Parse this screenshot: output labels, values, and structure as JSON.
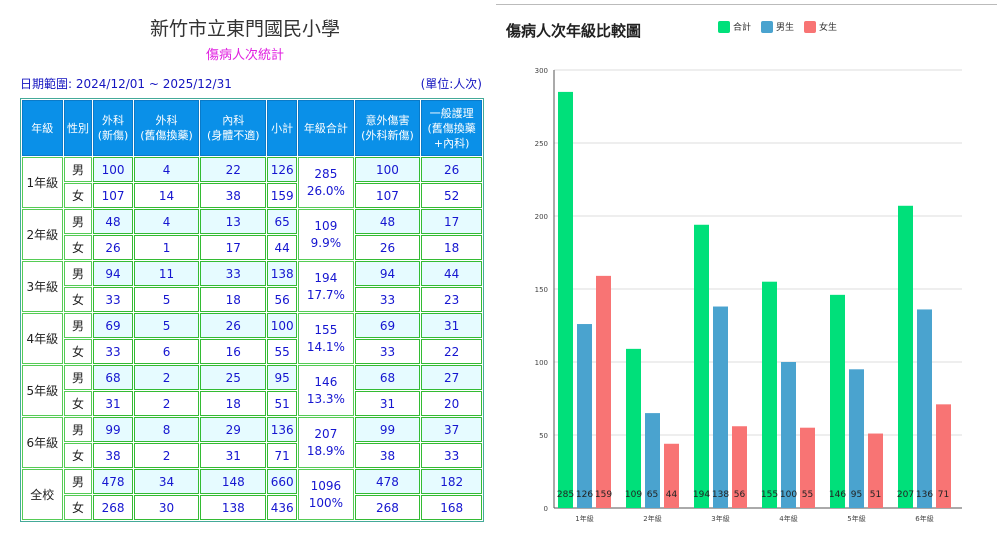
{
  "table": {
    "title": "新竹市立東門國民小學",
    "subtitle": "傷病人次統計",
    "date_range": "日期範圍: 2024/12/01 ~ 2025/12/31",
    "unit": "(單位:人次)",
    "headers": [
      [
        "年級"
      ],
      [
        "性別"
      ],
      [
        "外科",
        "(新傷)"
      ],
      [
        "外科",
        "(舊傷換藥)"
      ],
      [
        "內科",
        "(身體不適)"
      ],
      [
        "小計"
      ],
      [
        "年級合計"
      ],
      [
        "意外傷害",
        "(外科新傷)"
      ],
      [
        "一般護理",
        "(舊傷換藥",
        "+內科)"
      ]
    ],
    "groups": [
      {
        "grade": "1年級",
        "total": "285",
        "pct": "26.0%",
        "rows": [
          {
            "sex": "男",
            "vals": [
              "100",
              "4",
              "22",
              "126"
            ],
            "acc": [
              "100",
              "26"
            ]
          },
          {
            "sex": "女",
            "vals": [
              "107",
              "14",
              "38",
              "159"
            ],
            "acc": [
              "107",
              "52"
            ]
          }
        ]
      },
      {
        "grade": "2年級",
        "total": "109",
        "pct": "9.9%",
        "rows": [
          {
            "sex": "男",
            "vals": [
              "48",
              "4",
              "13",
              "65"
            ],
            "acc": [
              "48",
              "17"
            ]
          },
          {
            "sex": "女",
            "vals": [
              "26",
              "1",
              "17",
              "44"
            ],
            "acc": [
              "26",
              "18"
            ]
          }
        ]
      },
      {
        "grade": "3年級",
        "total": "194",
        "pct": "17.7%",
        "rows": [
          {
            "sex": "男",
            "vals": [
              "94",
              "11",
              "33",
              "138"
            ],
            "acc": [
              "94",
              "44"
            ]
          },
          {
            "sex": "女",
            "vals": [
              "33",
              "5",
              "18",
              "56"
            ],
            "acc": [
              "33",
              "23"
            ]
          }
        ]
      },
      {
        "grade": "4年級",
        "total": "155",
        "pct": "14.1%",
        "rows": [
          {
            "sex": "男",
            "vals": [
              "69",
              "5",
              "26",
              "100"
            ],
            "acc": [
              "69",
              "31"
            ]
          },
          {
            "sex": "女",
            "vals": [
              "33",
              "6",
              "16",
              "55"
            ],
            "acc": [
              "33",
              "22"
            ]
          }
        ]
      },
      {
        "grade": "5年級",
        "total": "146",
        "pct": "13.3%",
        "rows": [
          {
            "sex": "男",
            "vals": [
              "68",
              "2",
              "25",
              "95"
            ],
            "acc": [
              "68",
              "27"
            ]
          },
          {
            "sex": "女",
            "vals": [
              "31",
              "2",
              "18",
              "51"
            ],
            "acc": [
              "31",
              "20"
            ]
          }
        ]
      },
      {
        "grade": "6年級",
        "total": "207",
        "pct": "18.9%",
        "rows": [
          {
            "sex": "男",
            "vals": [
              "99",
              "8",
              "29",
              "136"
            ],
            "acc": [
              "99",
              "37"
            ]
          },
          {
            "sex": "女",
            "vals": [
              "38",
              "2",
              "31",
              "71"
            ],
            "acc": [
              "38",
              "33"
            ]
          }
        ]
      },
      {
        "grade": "全校",
        "total": "1096",
        "pct": "100%",
        "rows": [
          {
            "sex": "男",
            "vals": [
              "478",
              "34",
              "148",
              "660"
            ],
            "acc": [
              "478",
              "182"
            ]
          },
          {
            "sex": "女",
            "vals": [
              "268",
              "30",
              "138",
              "436"
            ],
            "acc": [
              "268",
              "168"
            ]
          }
        ]
      }
    ]
  },
  "chart_data": {
    "type": "bar",
    "title": "傷病人次年級比較圖",
    "categories": [
      "1年級",
      "2年級",
      "3年級",
      "4年級",
      "5年級",
      "6年級"
    ],
    "series": [
      {
        "name": "合計",
        "color": "#00e07a",
        "values": [
          285,
          109,
          194,
          155,
          146,
          207
        ]
      },
      {
        "name": "男生",
        "color": "#4aa3cf",
        "values": [
          126,
          65,
          138,
          100,
          95,
          136
        ]
      },
      {
        "name": "女生",
        "color": "#f87474",
        "values": [
          159,
          44,
          56,
          55,
          51,
          71
        ]
      }
    ],
    "ylim": [
      0,
      300
    ],
    "yticks": [
      0,
      50,
      100,
      150,
      200,
      250,
      300
    ],
    "grid": true,
    "legend_position": "top"
  }
}
